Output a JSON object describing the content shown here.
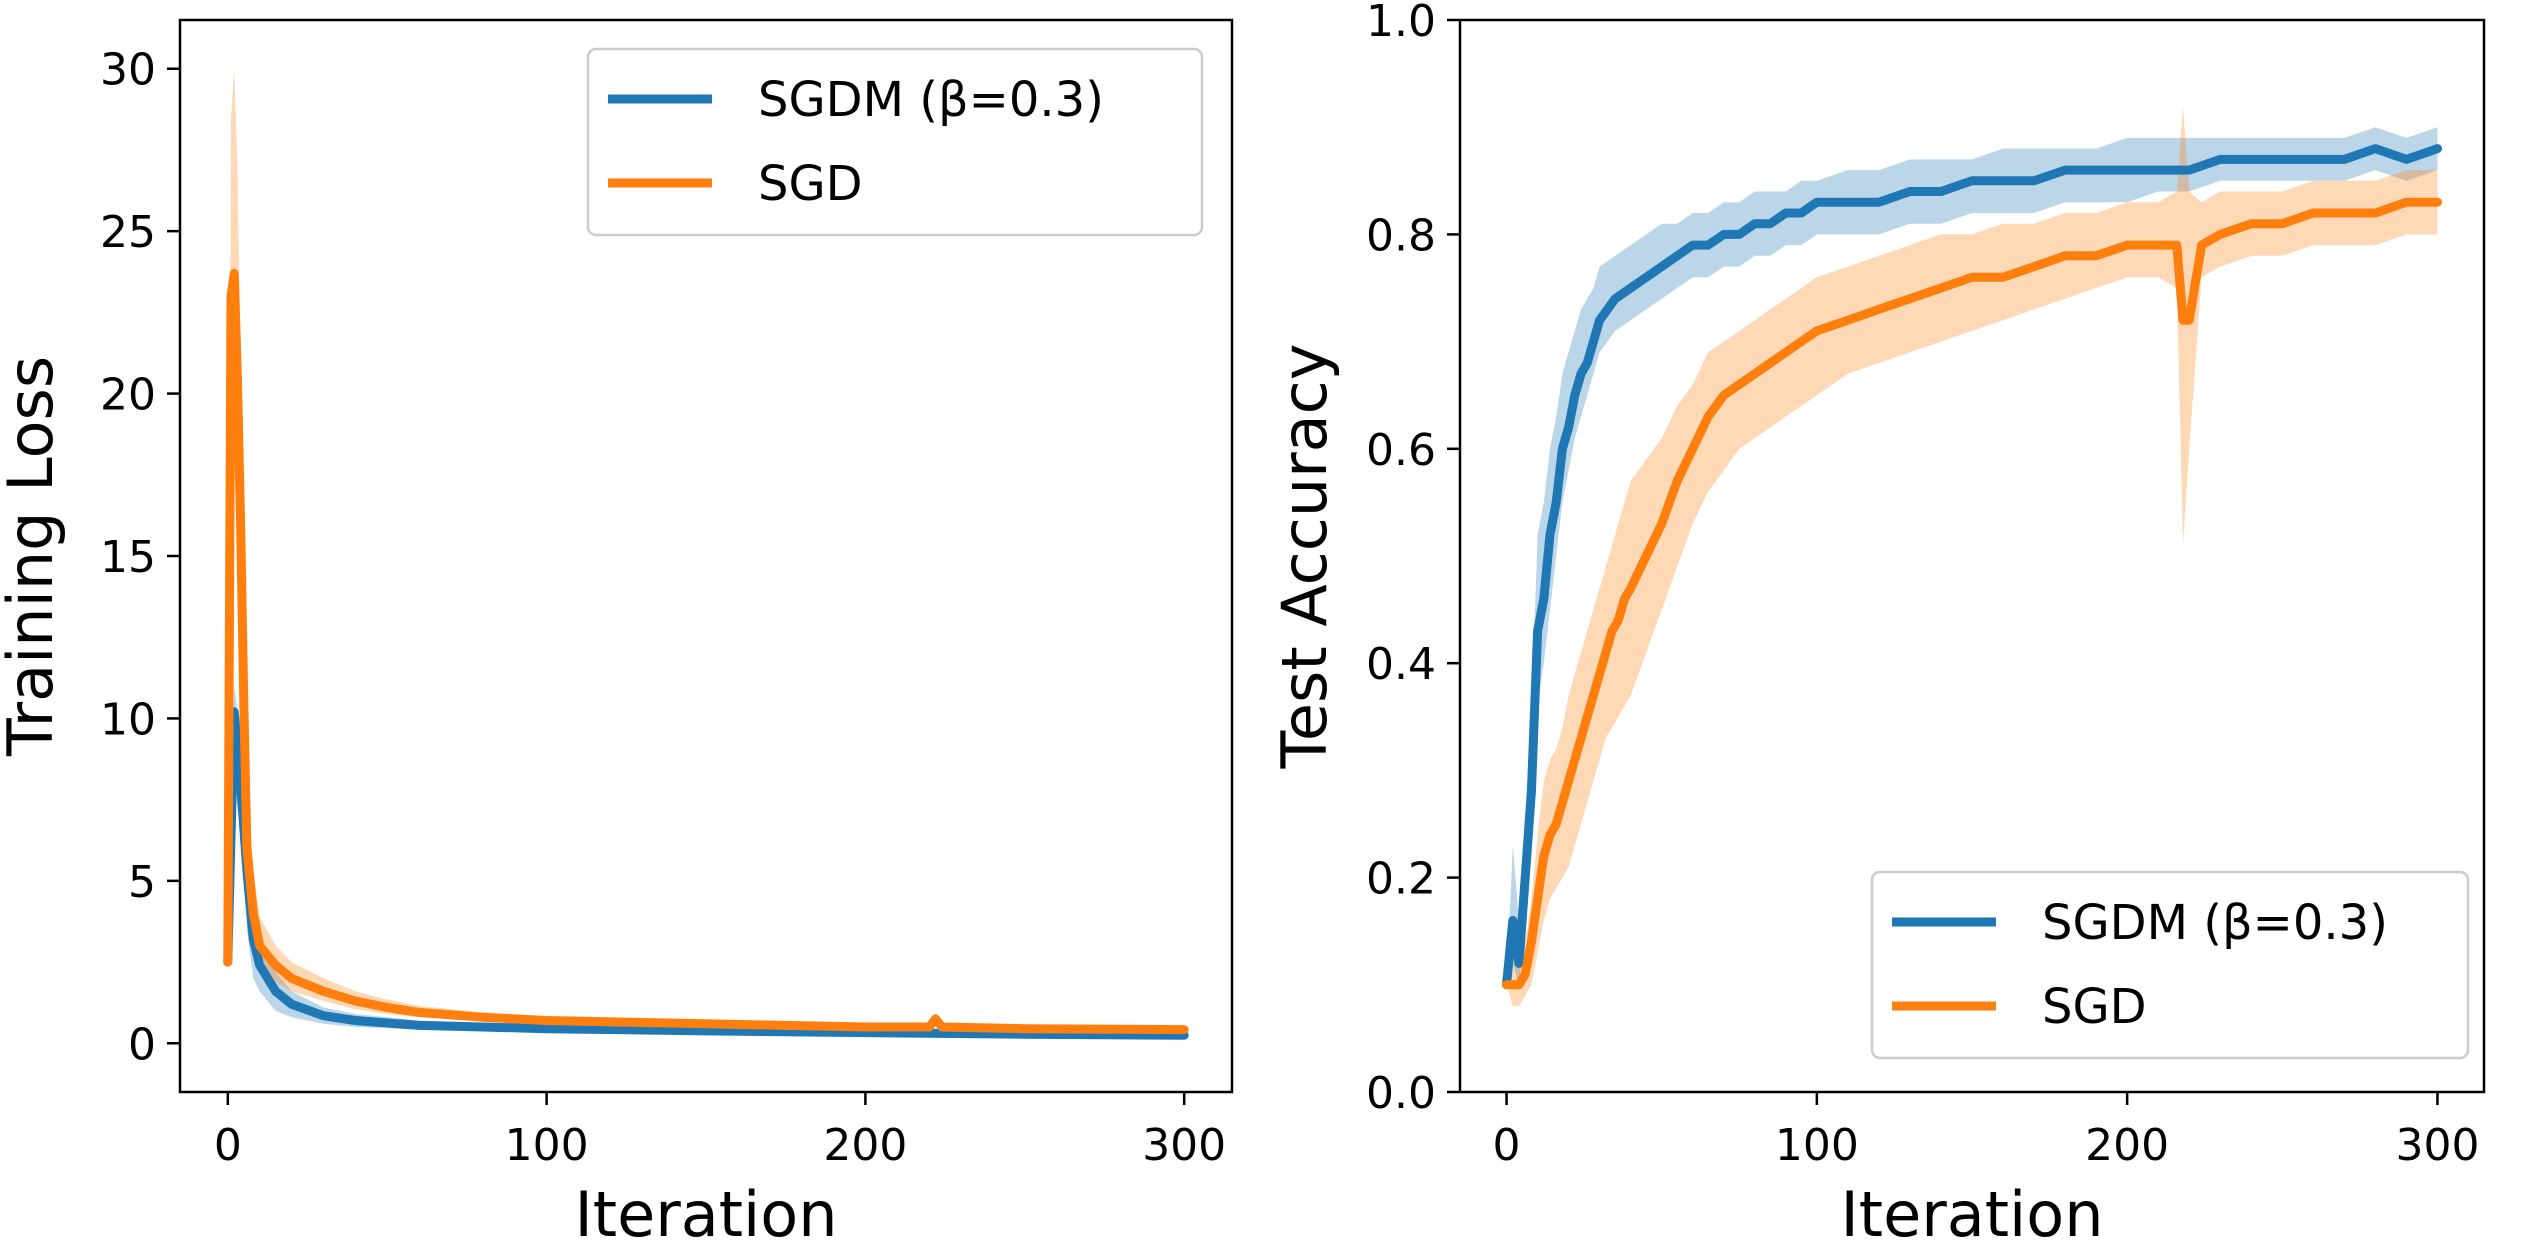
{
  "chart_data": [
    {
      "type": "line",
      "title": "",
      "xlabel": "Iteration",
      "ylabel": "Training Loss",
      "xlim": [
        -15,
        315
      ],
      "ylim": [
        -1.5,
        31.5
      ],
      "xticks": [
        0,
        100,
        200,
        300
      ],
      "xtick_labels": [
        "0",
        "100",
        "200",
        "300"
      ],
      "yticks": [
        0,
        5,
        10,
        15,
        20,
        25,
        30
      ],
      "ytick_labels": [
        "0",
        "5",
        "10",
        "15",
        "20",
        "25",
        "30"
      ],
      "grid": false,
      "legend_position": "upper right",
      "series": [
        {
          "name": "SGDM (β=0.3)",
          "color": "#1f77b4",
          "x": [
            0,
            2,
            4,
            6,
            8,
            10,
            15,
            20,
            30,
            40,
            60,
            80,
            100,
            150,
            200,
            250,
            300
          ],
          "values": [
            2.5,
            10.2,
            8.0,
            5.3,
            3.2,
            2.4,
            1.6,
            1.2,
            0.85,
            0.7,
            0.55,
            0.5,
            0.45,
            0.38,
            0.33,
            0.28,
            0.25
          ],
          "band_low": [
            2.5,
            8.0,
            6.5,
            3.5,
            2.0,
            1.6,
            1.0,
            0.8,
            0.6,
            0.5,
            0.42,
            0.38,
            0.35,
            0.3,
            0.26,
            0.22,
            0.2
          ],
          "band_high": [
            2.5,
            11.0,
            9.5,
            6.5,
            4.2,
            3.2,
            2.2,
            1.6,
            1.1,
            0.9,
            0.7,
            0.62,
            0.55,
            0.46,
            0.4,
            0.35,
            0.3
          ]
        },
        {
          "name": "SGD",
          "color": "#ff7f0e",
          "x": [
            0,
            1,
            2,
            3,
            4,
            5,
            6,
            8,
            10,
            15,
            20,
            30,
            40,
            50,
            60,
            80,
            100,
            150,
            200,
            220,
            222,
            224,
            250,
            300
          ],
          "values": [
            2.5,
            23.0,
            23.7,
            20.5,
            16.0,
            10.5,
            6.0,
            4.0,
            3.0,
            2.4,
            2.0,
            1.6,
            1.3,
            1.1,
            0.95,
            0.8,
            0.7,
            0.6,
            0.5,
            0.5,
            0.75,
            0.5,
            0.45,
            0.42
          ],
          "band_low": [
            2.5,
            17.0,
            18.0,
            15.0,
            11.0,
            7.0,
            4.0,
            2.8,
            2.2,
            1.9,
            1.6,
            1.3,
            1.05,
            0.9,
            0.8,
            0.68,
            0.6,
            0.52,
            0.44,
            0.44,
            0.6,
            0.44,
            0.4,
            0.37
          ],
          "band_high": [
            2.5,
            28.5,
            30.0,
            27.0,
            21.0,
            14.5,
            8.5,
            5.3,
            3.9,
            3.0,
            2.5,
            2.0,
            1.6,
            1.35,
            1.15,
            0.95,
            0.82,
            0.7,
            0.58,
            0.58,
            0.9,
            0.58,
            0.52,
            0.48
          ]
        }
      ]
    },
    {
      "type": "line",
      "title": "",
      "xlabel": "Iteration",
      "ylabel": "Test Accuracy",
      "xlim": [
        -15,
        315
      ],
      "ylim": [
        0.0,
        1.0
      ],
      "xticks": [
        0,
        100,
        200,
        300
      ],
      "xtick_labels": [
        "0",
        "100",
        "200",
        "300"
      ],
      "yticks": [
        0.0,
        0.2,
        0.4,
        0.6,
        0.8,
        1.0
      ],
      "ytick_labels": [
        "0.0",
        "0.2",
        "0.4",
        "0.6",
        "0.8",
        "1.0"
      ],
      "grid": false,
      "legend_position": "lower right",
      "series": [
        {
          "name": "SGDM (β=0.3)",
          "color": "#1f77b4",
          "x": [
            0,
            2,
            4,
            6,
            8,
            10,
            12,
            14,
            16,
            18,
            20,
            22,
            24,
            26,
            28,
            30,
            35,
            40,
            45,
            50,
            55,
            60,
            65,
            70,
            75,
            80,
            85,
            90,
            95,
            100,
            110,
            120,
            130,
            140,
            150,
            160,
            170,
            180,
            190,
            200,
            210,
            220,
            230,
            240,
            250,
            260,
            270,
            280,
            290,
            300
          ],
          "values": [
            0.1,
            0.16,
            0.12,
            0.2,
            0.28,
            0.43,
            0.46,
            0.52,
            0.55,
            0.6,
            0.62,
            0.65,
            0.67,
            0.68,
            0.7,
            0.72,
            0.74,
            0.75,
            0.76,
            0.77,
            0.78,
            0.79,
            0.79,
            0.8,
            0.8,
            0.81,
            0.81,
            0.82,
            0.82,
            0.83,
            0.83,
            0.83,
            0.84,
            0.84,
            0.85,
            0.85,
            0.85,
            0.86,
            0.86,
            0.86,
            0.86,
            0.86,
            0.87,
            0.87,
            0.87,
            0.87,
            0.87,
            0.88,
            0.87,
            0.88
          ],
          "band_low": [
            0.1,
            0.12,
            0.1,
            0.16,
            0.22,
            0.36,
            0.4,
            0.45,
            0.5,
            0.55,
            0.58,
            0.61,
            0.63,
            0.65,
            0.67,
            0.69,
            0.71,
            0.72,
            0.73,
            0.74,
            0.75,
            0.76,
            0.76,
            0.77,
            0.77,
            0.78,
            0.78,
            0.79,
            0.79,
            0.8,
            0.8,
            0.8,
            0.81,
            0.81,
            0.82,
            0.82,
            0.82,
            0.83,
            0.83,
            0.83,
            0.84,
            0.84,
            0.85,
            0.85,
            0.85,
            0.85,
            0.85,
            0.86,
            0.85,
            0.86
          ],
          "band_high": [
            0.1,
            0.23,
            0.16,
            0.26,
            0.35,
            0.52,
            0.55,
            0.6,
            0.63,
            0.67,
            0.69,
            0.71,
            0.73,
            0.74,
            0.75,
            0.77,
            0.78,
            0.79,
            0.8,
            0.81,
            0.81,
            0.82,
            0.82,
            0.83,
            0.83,
            0.84,
            0.84,
            0.84,
            0.85,
            0.85,
            0.86,
            0.86,
            0.87,
            0.87,
            0.87,
            0.88,
            0.88,
            0.88,
            0.88,
            0.89,
            0.89,
            0.89,
            0.89,
            0.89,
            0.89,
            0.89,
            0.89,
            0.9,
            0.89,
            0.9
          ]
        },
        {
          "name": "SGD",
          "color": "#ff7f0e",
          "x": [
            0,
            2,
            4,
            6,
            8,
            10,
            12,
            14,
            16,
            18,
            20,
            22,
            24,
            26,
            28,
            30,
            32,
            34,
            36,
            38,
            40,
            45,
            50,
            55,
            60,
            65,
            70,
            75,
            80,
            85,
            90,
            95,
            100,
            110,
            120,
            130,
            140,
            150,
            160,
            170,
            180,
            190,
            200,
            210,
            216,
            218,
            220,
            224,
            230,
            240,
            250,
            260,
            270,
            280,
            290,
            300
          ],
          "values": [
            0.1,
            0.1,
            0.1,
            0.11,
            0.14,
            0.18,
            0.22,
            0.24,
            0.25,
            0.27,
            0.29,
            0.31,
            0.33,
            0.35,
            0.37,
            0.39,
            0.41,
            0.43,
            0.44,
            0.46,
            0.47,
            0.5,
            0.53,
            0.57,
            0.6,
            0.63,
            0.65,
            0.66,
            0.67,
            0.68,
            0.69,
            0.7,
            0.71,
            0.72,
            0.73,
            0.74,
            0.75,
            0.76,
            0.76,
            0.77,
            0.78,
            0.78,
            0.79,
            0.79,
            0.79,
            0.72,
            0.72,
            0.79,
            0.8,
            0.81,
            0.81,
            0.82,
            0.82,
            0.82,
            0.83,
            0.83
          ],
          "band_low": [
            0.1,
            0.08,
            0.08,
            0.09,
            0.1,
            0.13,
            0.16,
            0.18,
            0.19,
            0.2,
            0.21,
            0.23,
            0.25,
            0.27,
            0.29,
            0.31,
            0.33,
            0.34,
            0.35,
            0.36,
            0.37,
            0.41,
            0.45,
            0.49,
            0.53,
            0.56,
            0.58,
            0.6,
            0.61,
            0.62,
            0.63,
            0.64,
            0.65,
            0.67,
            0.68,
            0.69,
            0.7,
            0.71,
            0.72,
            0.73,
            0.74,
            0.75,
            0.76,
            0.76,
            0.75,
            0.51,
            0.6,
            0.76,
            0.77,
            0.78,
            0.78,
            0.79,
            0.79,
            0.79,
            0.8,
            0.8
          ],
          "band_high": [
            0.1,
            0.12,
            0.12,
            0.14,
            0.18,
            0.24,
            0.29,
            0.31,
            0.32,
            0.34,
            0.37,
            0.39,
            0.41,
            0.43,
            0.45,
            0.47,
            0.49,
            0.51,
            0.53,
            0.55,
            0.57,
            0.59,
            0.61,
            0.64,
            0.66,
            0.69,
            0.7,
            0.71,
            0.72,
            0.73,
            0.74,
            0.75,
            0.76,
            0.77,
            0.78,
            0.79,
            0.8,
            0.8,
            0.81,
            0.81,
            0.82,
            0.82,
            0.83,
            0.83,
            0.84,
            0.92,
            0.84,
            0.83,
            0.84,
            0.84,
            0.84,
            0.85,
            0.85,
            0.85,
            0.86,
            0.86
          ]
        }
      ]
    }
  ]
}
